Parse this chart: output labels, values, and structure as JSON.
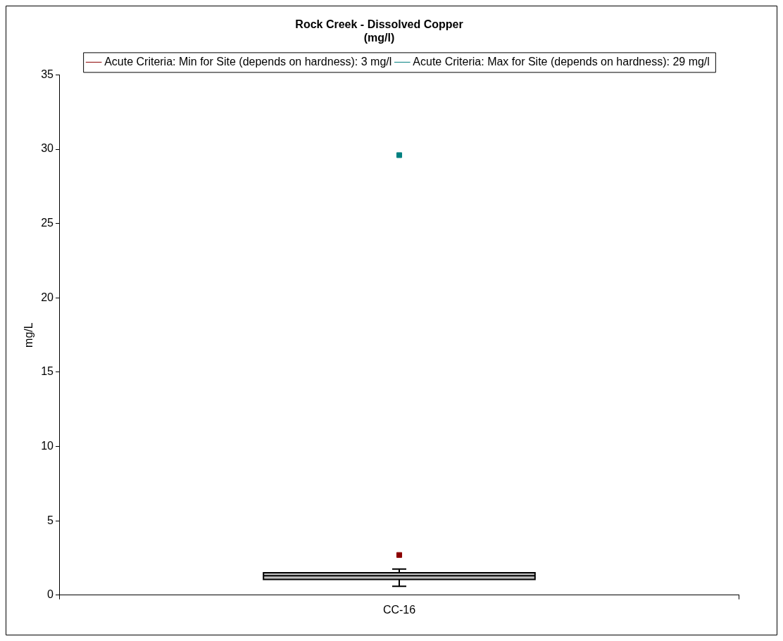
{
  "chart_data": {
    "type": "box",
    "title": "Rock Creek - Dissolved Copper\n(mg/l)",
    "ylabel": "mg/L",
    "categories": [
      "CC-16"
    ],
    "boxes": [
      {
        "low": 0.6,
        "q1": 1.05,
        "median": 1.3,
        "q3": 1.5,
        "high": 1.75
      }
    ],
    "series": [
      {
        "type": "scatter",
        "name": "Acute Criteria: Min for Site (depends on hardness): 3 mg/l",
        "color": "#8b0000",
        "x": [
          "CC-16"
        ],
        "values": [
          2.7
        ]
      },
      {
        "type": "scatter",
        "name": "Acute Criteria: Max for Site (depends on hardness): 29 mg/l",
        "color": "#008080",
        "x": [
          "CC-16"
        ],
        "values": [
          29.6
        ]
      }
    ],
    "ylim": [
      0,
      35
    ],
    "yticks": [
      0,
      5,
      10,
      15,
      20,
      25,
      30,
      35
    ],
    "grid": false,
    "legend": "top"
  }
}
